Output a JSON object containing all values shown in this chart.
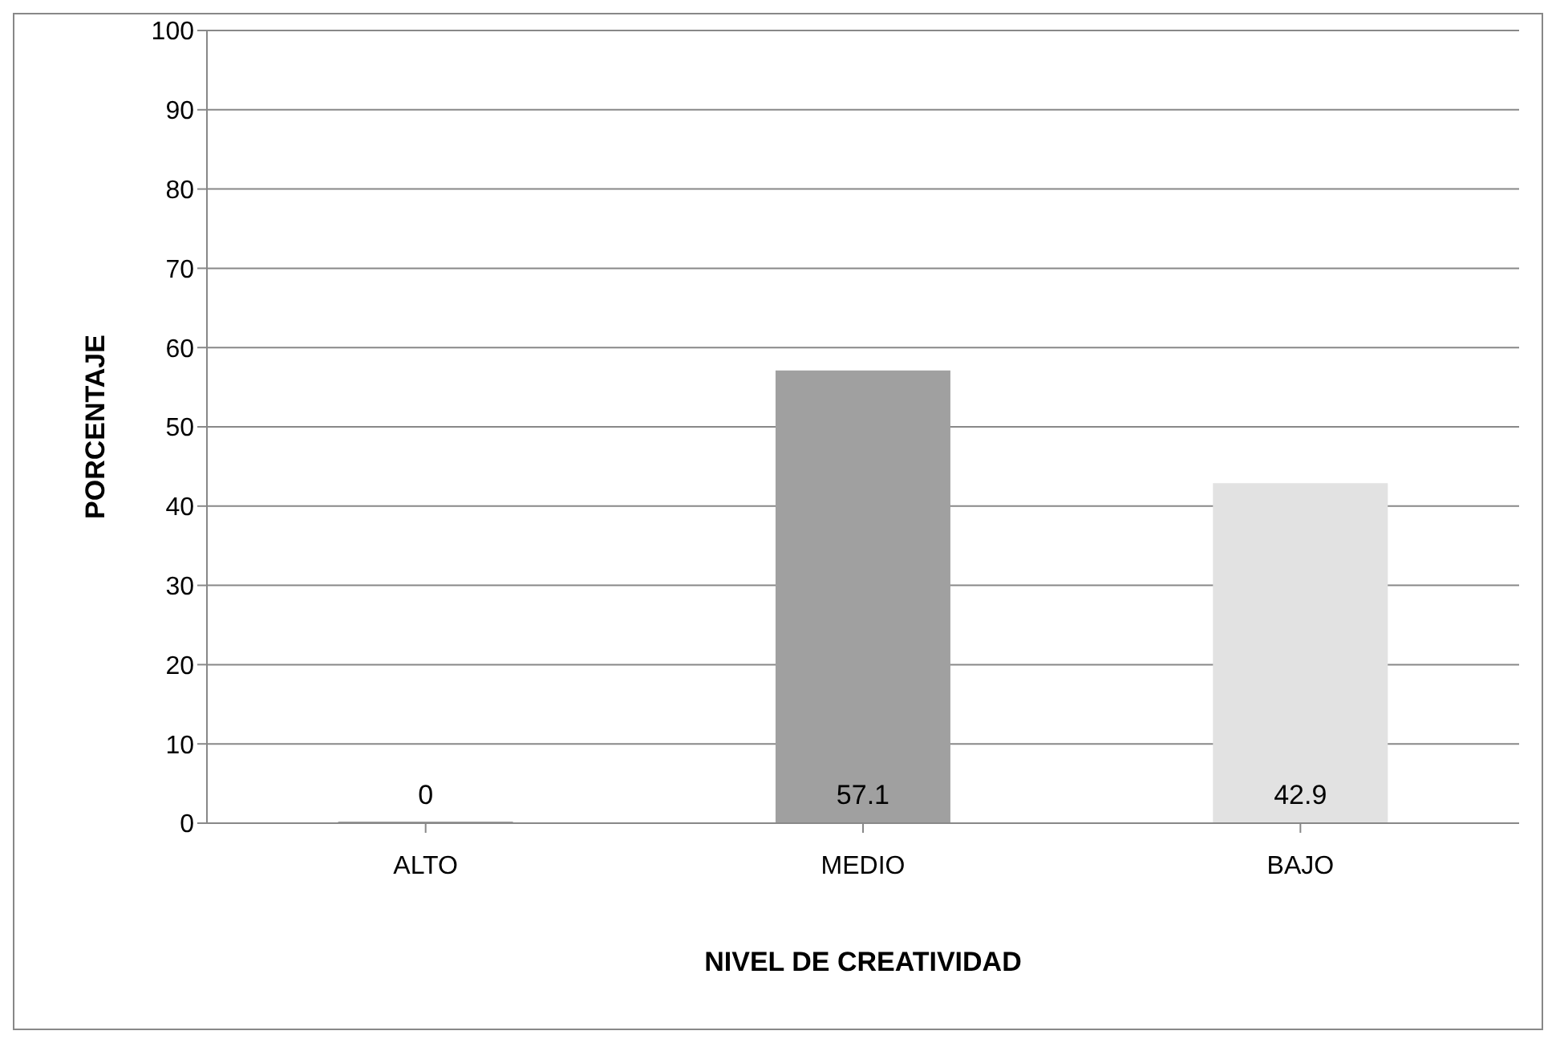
{
  "chart_data": {
    "type": "bar",
    "xlabel": "NIVEL DE CREATIVIDAD",
    "ylabel": "PORCENTAJE",
    "categories": [
      "ALTO",
      "MEDIO",
      "BAJO"
    ],
    "values": [
      0,
      57.1,
      42.9
    ],
    "colors": [
      "#a0a0a0",
      "#a0a0a0",
      "#e2e2e2"
    ],
    "ylim": [
      0,
      100
    ],
    "yticks": [
      0,
      10,
      20,
      30,
      40,
      50,
      60,
      70,
      80,
      90,
      100
    ],
    "grid": "y",
    "data_labels": true
  }
}
